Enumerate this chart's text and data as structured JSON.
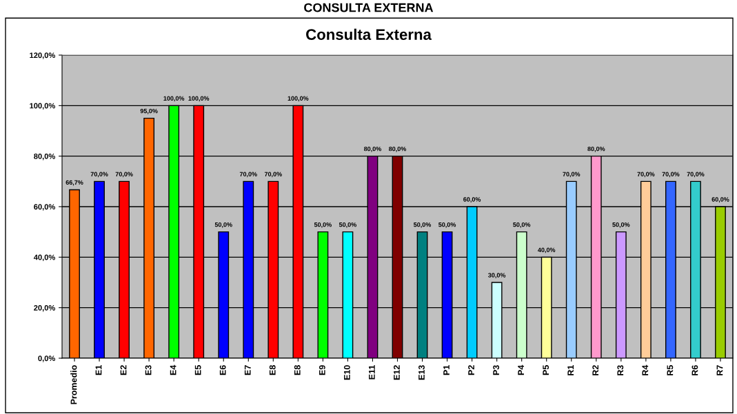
{
  "chart_data": {
    "type": "bar",
    "title": "CONSULTA EXTERNA",
    "subtitle": "Consulta Externa",
    "categories": [
      "Promedio",
      "E1",
      "E2",
      "E3",
      "E4",
      "E5",
      "E6",
      "E7",
      "E8",
      "E8",
      "E9",
      "E10",
      "E11",
      "E12",
      "E13",
      "P1",
      "P2",
      "P3",
      "P4",
      "P5",
      "R1",
      "R2",
      "R3",
      "R4",
      "R5",
      "R6",
      "R7"
    ],
    "values": [
      66.7,
      70,
      70,
      95,
      100,
      100,
      50,
      70,
      70,
      100,
      50,
      50,
      80,
      80,
      50,
      50,
      60,
      30,
      50,
      40,
      70,
      80,
      50,
      70,
      70,
      70,
      60
    ],
    "value_labels": [
      "66,7%",
      "70,0%",
      "70,0%",
      "95,0%",
      "100,0%",
      "100,0%",
      "50,0%",
      "70,0%",
      "70,0%",
      "100,0%",
      "50,0%",
      "50,0%",
      "80,0%",
      "80,0%",
      "50,0%",
      "50,0%",
      "60,0%",
      "30,0%",
      "50,0%",
      "40,0%",
      "70,0%",
      "80,0%",
      "50,0%",
      "70,0%",
      "70,0%",
      "70,0%",
      "60,0%"
    ],
    "colors": [
      "#ff6600",
      "#0000ff",
      "#ff0000",
      "#ff6600",
      "#00ff00",
      "#ff0000",
      "#0000ff",
      "#0000ff",
      "#ff0000",
      "#ff0000",
      "#00ff00",
      "#00ffff",
      "#800080",
      "#800000",
      "#008080",
      "#0000ff",
      "#00ccff",
      "#ccffff",
      "#ccffcc",
      "#ffff99",
      "#99ccff",
      "#ff99cc",
      "#cc99ff",
      "#ffcc99",
      "#3366ff",
      "#33cccc",
      "#99cc00"
    ],
    "ylim": [
      0,
      120
    ],
    "yticks": [
      {
        "value": 0,
        "label": "0,0%"
      },
      {
        "value": 20,
        "label": "20,0%"
      },
      {
        "value": 40,
        "label": "40,0%"
      },
      {
        "value": 60,
        "label": "60,0%"
      },
      {
        "value": 80,
        "label": "80,0%"
      },
      {
        "value": 100,
        "label": "100,0%"
      },
      {
        "value": 120,
        "label": "120,0%"
      }
    ],
    "grid": "y",
    "legend": false
  }
}
